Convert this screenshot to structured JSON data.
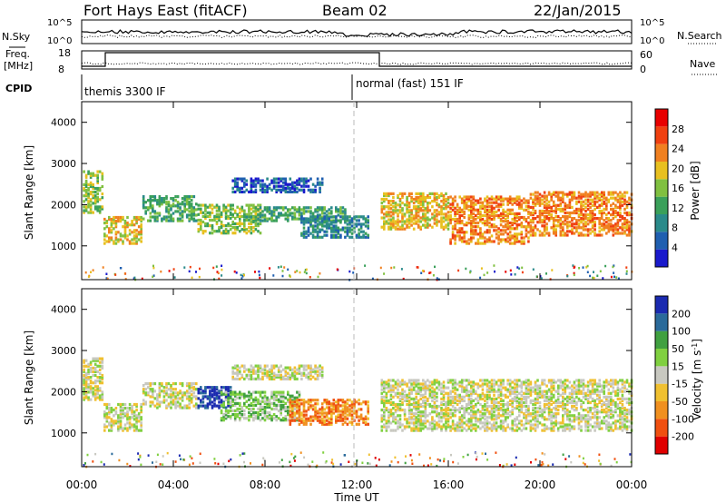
{
  "header": {
    "station": "Fort Hays East (fitACF)",
    "beam": "Beam 02",
    "date": "22/Jan/2015"
  },
  "labels": {
    "nsky": "N.Sky",
    "nsky_ticks": [
      "10^5",
      "10^0"
    ],
    "nsearch": "N.Search",
    "nsearch_ticks": [
      "10^5",
      "10^0"
    ],
    "freq_line1": "Freq.",
    "freq_line2": "[MHz]",
    "freq_ticks": [
      "18",
      "8"
    ],
    "nave": "Nave",
    "nave_ticks": [
      "60",
      "0"
    ],
    "cpid": "CPID",
    "cpid_1": "themis 3300 IF",
    "cpid_2": "normal (fast) 151 IF",
    "ylabel": "Slant Range [km]",
    "xlabel": "Time UT"
  },
  "colors": {
    "power": [
      "#1a1acc",
      "#1f5fb0",
      "#2a8a8a",
      "#3aa05a",
      "#80c040",
      "#e8c020",
      "#f08020",
      "#f04010",
      "#e80000"
    ],
    "velocity": [
      "#e00000",
      "#f05010",
      "#f09020",
      "#f0c030",
      "#c8c8c0",
      "#80d040",
      "#40a040",
      "#2a6a9a",
      "#1a2ab0"
    ],
    "ground_scatter": "#c8c8c0"
  },
  "chart_data": [
    {
      "type": "heatmap",
      "name": "power",
      "x_ticks": [
        "00:00",
        "04:00",
        "08:00",
        "12:00",
        "16:00",
        "20:00",
        "00:00"
      ],
      "y_ticks": [
        1000,
        2000,
        3000,
        4000
      ],
      "ylim": [
        180,
        4500
      ],
      "colorbar_label": "Power [dB]",
      "colorbar_ticks": [
        4,
        8,
        12,
        16,
        20,
        24,
        28
      ],
      "scatter_regions": [
        {
          "t0": 0.0,
          "t1": 0.9,
          "r0": 1800,
          "r1": 2800,
          "level": 4
        },
        {
          "t0": 0.9,
          "t1": 2.6,
          "r0": 1050,
          "r1": 1700,
          "level": 5
        },
        {
          "t0": 2.6,
          "t1": 5.0,
          "r0": 1600,
          "r1": 2200,
          "level": 3
        },
        {
          "t0": 5.0,
          "t1": 7.8,
          "r0": 1300,
          "r1": 2000,
          "level": 4
        },
        {
          "t0": 6.5,
          "t1": 10.5,
          "r0": 2300,
          "r1": 2650,
          "level": 1
        },
        {
          "t0": 7.0,
          "t1": 11.5,
          "r0": 1600,
          "r1": 1950,
          "level": 3
        },
        {
          "t0": 9.5,
          "t1": 12.5,
          "r0": 1200,
          "r1": 1700,
          "level": 2
        },
        {
          "t0": 13.0,
          "t1": 16.0,
          "r0": 1400,
          "r1": 2300,
          "level": 5
        },
        {
          "t0": 16.0,
          "t1": 19.5,
          "r0": 1050,
          "r1": 2200,
          "level": 6
        },
        {
          "t0": 19.5,
          "t1": 24.0,
          "r0": 1250,
          "r1": 2300,
          "level": 6
        }
      ]
    },
    {
      "type": "heatmap",
      "name": "velocity",
      "x_ticks": [
        "00:00",
        "04:00",
        "08:00",
        "12:00",
        "16:00",
        "20:00",
        "00:00"
      ],
      "y_ticks": [
        1000,
        2000,
        3000,
        4000
      ],
      "ylim": [
        180,
        4500
      ],
      "colorbar_label": "Velocity [m s",
      "colorbar_label_exponent": "-1",
      "colorbar_label_suffix": "]",
      "colorbar_ticks": [
        200,
        100,
        50,
        15,
        -15,
        -50,
        -100,
        -200
      ],
      "scatter_regions": [
        {
          "t0": 0.0,
          "t1": 0.9,
          "r0": 1800,
          "r1": 2800,
          "level": 4
        },
        {
          "t0": 0.9,
          "t1": 2.6,
          "r0": 1050,
          "r1": 1700,
          "level": 4
        },
        {
          "t0": 2.6,
          "t1": 5.0,
          "r0": 1600,
          "r1": 2200,
          "level": 4
        },
        {
          "t0": 5.0,
          "t1": 6.5,
          "r0": 1600,
          "r1": 2100,
          "level": 8
        },
        {
          "t0": 6.0,
          "t1": 9.5,
          "r0": 1300,
          "r1": 2000,
          "level": 5
        },
        {
          "t0": 6.5,
          "t1": 10.5,
          "r0": 2300,
          "r1": 2650,
          "level": 4
        },
        {
          "t0": 9.0,
          "t1": 12.5,
          "r0": 1200,
          "r1": 1800,
          "level": 2
        },
        {
          "t0": 13.0,
          "t1": 24.0,
          "r0": 1050,
          "r1": 2300,
          "level": 4
        }
      ]
    }
  ]
}
